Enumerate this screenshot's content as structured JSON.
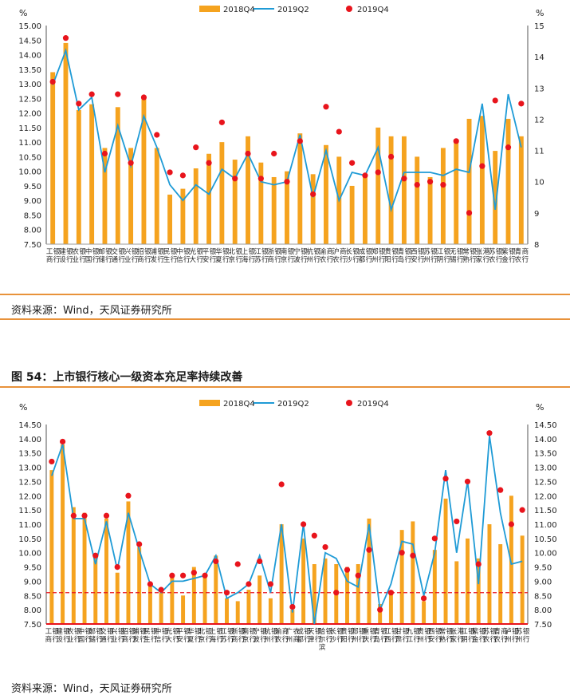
{
  "charts": [
    {
      "unit_left": "%",
      "unit_right": "%",
      "source": "资料来源：Wind，天风证券研究所"
    },
    {
      "title": "图 54：上市银行核心一级资本充足率持续改善",
      "unit_left": "%",
      "unit_right": "%",
      "source": "资料来源：Wind，天风证券研究所"
    }
  ],
  "colors": {
    "bar": "#f5a31f",
    "line": "#1f9bd6",
    "dot": "#e8141c",
    "refline": "#e8141c",
    "rule": "#e8923a"
  },
  "chart_data": [
    {
      "type": "bar",
      "title": "",
      "legend": [
        "2018Q4",
        "2019Q2",
        "2019Q4"
      ],
      "categories": [
        "工商银行",
        "建设银行",
        "农业银行",
        "中国银行",
        "邮储银行",
        "交通银行",
        "兴业银行",
        "招商银行",
        "浦发银行",
        "民生银行",
        "中信银行",
        "光大银行",
        "平安银行",
        "华夏银行",
        "北京银行",
        "上海银行",
        "江苏银行",
        "浙商银行",
        "南京银行",
        "宁波银行",
        "杭州银行",
        "渝农商行",
        "沪农商行",
        "长沙银行",
        "成都银行",
        "郑州银行",
        "贵阳银行",
        "青岛银行",
        "西安银行",
        "苏州银行",
        "江阴银行",
        "无锡银行",
        "常熟银行",
        "张家港行",
        "苏农银行",
        "紫金银行",
        "青农商行"
      ],
      "axis_label_left": "%",
      "axis_label_right": "%",
      "ylim_left": [
        7.5,
        15.0
      ],
      "yticks_left": [
        7.5,
        8.0,
        8.5,
        9.0,
        9.5,
        10.0,
        10.5,
        11.0,
        11.5,
        12.0,
        12.5,
        13.0,
        13.5,
        14.0,
        14.5,
        15.0
      ],
      "ylim_right": [
        8,
        15
      ],
      "yticks_right": [
        8,
        9,
        10,
        11,
        12,
        13,
        14,
        15
      ],
      "series": [
        {
          "name": "2018Q4",
          "kind": "bar",
          "axis": "left",
          "values": [
            13.4,
            14.4,
            12.1,
            12.3,
            10.8,
            12.2,
            10.8,
            12.6,
            10.8,
            9.2,
            9.4,
            10.1,
            10.6,
            11.0,
            10.4,
            11.2,
            10.3,
            9.8,
            10.0,
            11.3,
            9.9,
            10.9,
            10.5,
            9.5,
            9.9,
            11.5,
            11.2,
            11.2,
            10.5,
            9.8,
            10.8,
            11.0,
            11.8,
            11.9,
            10.7,
            11.8,
            11.2
          ]
        },
        {
          "name": "2019Q2",
          "kind": "line",
          "axis": "right",
          "values": [
            13.1,
            14.2,
            12.3,
            12.7,
            10.3,
            11.8,
            10.5,
            12.1,
            11.1,
            9.9,
            9.4,
            9.9,
            9.6,
            10.4,
            10.1,
            10.9,
            10.0,
            9.9,
            10.0,
            11.5,
            9.5,
            11.0,
            9.4,
            10.3,
            10.2,
            11.1,
            9.1,
            10.3,
            10.3,
            10.3,
            10.2,
            10.4,
            10.3,
            12.5,
            9.1,
            12.8,
            11.1
          ]
        },
        {
          "name": "2019Q4",
          "kind": "dot",
          "axis": "right",
          "values": [
            13.2,
            14.6,
            12.5,
            12.8,
            10.9,
            12.8,
            10.6,
            12.7,
            11.5,
            10.3,
            10.2,
            11.1,
            10.6,
            11.9,
            10.1,
            10.9,
            10.1,
            10.9,
            10.0,
            11.3,
            9.6,
            12.4,
            11.6,
            10.6,
            10.2,
            10.3,
            10.8,
            10.1,
            9.9,
            10.0,
            9.9,
            11.3,
            9.0,
            10.5,
            12.6,
            11.1,
            12.5
          ]
        }
      ]
    },
    {
      "type": "bar",
      "title": "图 54：上市银行核心一级资本充足率持续改善",
      "legend": [
        "2018Q4",
        "2019Q2",
        "2019Q4"
      ],
      "categories": [
        "工商银行",
        "建设银行",
        "农业银行",
        "中国银行",
        "邮储银行",
        "交通银行",
        "兴业银行",
        "招商银行",
        "浦发银行",
        "民生银行",
        "中信银行",
        "光大银行",
        "平安银行",
        "华夏银行",
        "北京银行",
        "上海银行",
        "江苏银行",
        "浙商银行",
        "南京银行",
        "宁波银行",
        "杭州银行",
        "渝农商行",
        "广州农商",
        "成都银行",
        "天津银行",
        "哈尔滨银行",
        "长沙银行",
        "贵阳银行",
        "郑州银行",
        "重庆银行",
        "青岛银行",
        "江西银行",
        "甘肃银行",
        "九江银行",
        "贵州银行",
        "西安银行",
        "常熟银行",
        "张家港行",
        "江阴银行",
        "紫金银行",
        "苏农银行",
        "青农商行",
        "泸州银行",
        "苏州银行"
      ],
      "axis_label_left": "%",
      "axis_label_right": "%",
      "ylim_left": [
        7.5,
        14.5
      ],
      "yticks_left": [
        7.5,
        8.0,
        8.5,
        9.0,
        9.5,
        10.0,
        10.5,
        11.0,
        11.5,
        12.0,
        12.5,
        13.0,
        13.5,
        14.0,
        14.5
      ],
      "ylim_right": [
        7.5,
        14.5
      ],
      "yticks_right": [
        7.5,
        8.0,
        8.5,
        9.0,
        9.5,
        10.0,
        10.5,
        11.0,
        11.5,
        12.0,
        12.5,
        13.0,
        13.5,
        14.0,
        14.5
      ],
      "reference_line": 8.6,
      "series": [
        {
          "name": "2018Q4",
          "kind": "bar",
          "axis": "left",
          "values": [
            12.9,
            13.8,
            11.6,
            11.4,
            9.8,
            11.2,
            9.3,
            11.8,
            10.2,
            8.9,
            8.6,
            9.2,
            8.5,
            9.5,
            9.2,
            9.9,
            8.4,
            8.3,
            8.7,
            9.2,
            8.4,
            11.0,
            8.0,
            10.5,
            9.6,
            9.8,
            9.6,
            9.5,
            9.6,
            11.2,
            8.2,
            8.6,
            10.8,
            11.1,
            8.3,
            10.1,
            11.9,
            9.7,
            10.5,
            9.8,
            11.0,
            10.3,
            12.0,
            10.6
          ]
        },
        {
          "name": "2019Q2",
          "kind": "line",
          "axis": "right",
          "values": [
            12.7,
            13.8,
            11.2,
            11.2,
            9.6,
            11.1,
            9.4,
            11.4,
            10.1,
            8.9,
            8.6,
            9.0,
            9.0,
            9.1,
            9.2,
            9.9,
            8.4,
            8.6,
            8.9,
            9.9,
            8.6,
            11.0,
            7.9,
            11.0,
            7.5,
            10.0,
            9.8,
            9.0,
            8.8,
            11.0,
            8.0,
            8.9,
            10.4,
            10.3,
            8.5,
            10.0,
            12.9,
            10.0,
            12.5,
            8.9,
            14.1,
            11.4,
            9.6,
            9.7
          ]
        },
        {
          "name": "2019Q4",
          "kind": "dot",
          "axis": "right",
          "values": [
            13.2,
            13.9,
            11.3,
            11.3,
            9.9,
            11.3,
            9.5,
            12.0,
            10.3,
            8.9,
            8.7,
            9.2,
            9.2,
            9.3,
            9.2,
            9.7,
            8.6,
            9.6,
            8.9,
            9.7,
            8.9,
            12.4,
            8.1,
            11.0,
            10.6,
            10.2,
            8.6,
            9.4,
            9.2,
            10.1,
            8.0,
            8.6,
            10.0,
            9.9,
            8.4,
            10.5,
            12.6,
            11.1,
            12.5,
            9.6,
            14.2,
            12.2,
            11.0,
            11.5
          ]
        }
      ]
    }
  ]
}
